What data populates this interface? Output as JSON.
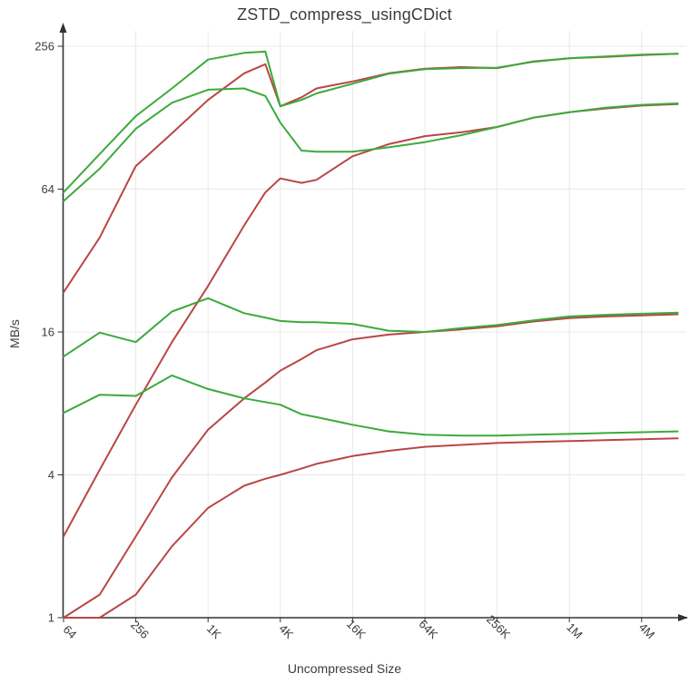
{
  "title": "ZSTD_compress_usingCDict",
  "axes": {
    "x_label": "Uncompressed Size",
    "y_label": "MB/s",
    "x_ticks": [
      {
        "label": "64",
        "size": 64
      },
      {
        "label": "256",
        "size": 256
      },
      {
        "label": "1K",
        "size": 1024
      },
      {
        "label": "4K",
        "size": 4096
      },
      {
        "label": "16K",
        "size": 16384
      },
      {
        "label": "64K",
        "size": 65536
      },
      {
        "label": "256K",
        "size": 262144
      },
      {
        "label": "1M",
        "size": 1048576
      },
      {
        "label": "4M",
        "size": 4194304
      }
    ],
    "y_ticks": [
      {
        "label": "1",
        "value": 1
      },
      {
        "label": "4",
        "value": 4
      },
      {
        "label": "16",
        "value": 16
      },
      {
        "label": "64",
        "value": 64
      },
      {
        "label": "256",
        "value": 256
      }
    ]
  },
  "colors": {
    "green": "#3caa3c",
    "red": "#b94646",
    "grid": "#e8e8e8",
    "axis": "#333333",
    "text": "#3c3c3c",
    "background": "#ffffff"
  },
  "chart_data": {
    "type": "line",
    "title": "ZSTD_compress_usingCDict",
    "xlabel": "Uncompressed Size",
    "ylabel": "MB/s",
    "x_scale": "log",
    "y_scale": "log",
    "x_range_bytes": [
      64,
      8388608
    ],
    "y_range_mbps": [
      1,
      256
    ],
    "grid": true,
    "legend": "none",
    "sizes_bytes": [
      64,
      128,
      256,
      512,
      1024,
      2048,
      3072,
      4096,
      6144,
      8192,
      16384,
      32768,
      65536,
      131072,
      262144,
      524288,
      1048576,
      2097152,
      4194304,
      8388608
    ],
    "series": [
      {
        "name": "red-line-1",
        "color": "#b94646",
        "values": [
          23.5,
          40,
          80,
          110,
          152,
          197,
          215,
          143,
          156,
          170,
          182,
          197,
          206,
          209,
          207,
          221,
          228,
          231,
          235,
          238
        ]
      },
      {
        "name": "green-line-1",
        "color": "#3caa3c",
        "values": [
          62,
          90,
          130,
          170,
          225,
          240,
          243,
          143,
          152,
          162,
          178,
          196,
          205,
          207,
          208,
          220,
          228,
          232,
          236,
          238
        ]
      },
      {
        "name": "red-line-2",
        "color": "#b94646",
        "values": [
          2.2,
          4.2,
          7.9,
          14.5,
          25,
          45,
          62,
          71,
          68,
          70,
          88,
          99,
          107,
          111,
          117,
          128,
          135,
          140,
          144,
          146
        ]
      },
      {
        "name": "green-line-2",
        "color": "#3caa3c",
        "values": [
          57,
          78,
          115,
          148,
          168,
          170,
          158,
          122,
          93,
          92,
          92,
          96,
          101,
          108,
          117,
          128,
          135,
          141,
          145,
          147
        ]
      },
      {
        "name": "red-line-3",
        "color": "#b94646",
        "values": [
          1.0,
          1.25,
          2.2,
          3.9,
          6.2,
          8.4,
          9.8,
          11,
          12.3,
          13.4,
          14.9,
          15.6,
          16.0,
          16.4,
          16.9,
          17.7,
          18.3,
          18.6,
          18.8,
          19.0
        ]
      },
      {
        "name": "green-line-3",
        "color": "#3caa3c",
        "values": [
          12.6,
          15.9,
          14.5,
          19.5,
          22.2,
          19.2,
          18.4,
          17.8,
          17.6,
          17.6,
          17.3,
          16.2,
          16.0,
          16.6,
          17.1,
          17.9,
          18.6,
          18.9,
          19.1,
          19.3
        ]
      },
      {
        "name": "red-line-4",
        "color": "#b94646",
        "values": [
          1.0,
          1.0,
          1.25,
          2.0,
          2.9,
          3.6,
          3.85,
          4.0,
          4.25,
          4.45,
          4.8,
          5.05,
          5.25,
          5.35,
          5.45,
          5.5,
          5.55,
          5.6,
          5.65,
          5.7
        ]
      },
      {
        "name": "green-line-4",
        "color": "#3caa3c",
        "values": [
          7.3,
          8.7,
          8.6,
          10.5,
          9.2,
          8.4,
          8.1,
          7.9,
          7.2,
          7.0,
          6.5,
          6.1,
          5.9,
          5.85,
          5.85,
          5.9,
          5.95,
          6.0,
          6.05,
          6.1
        ]
      }
    ]
  }
}
